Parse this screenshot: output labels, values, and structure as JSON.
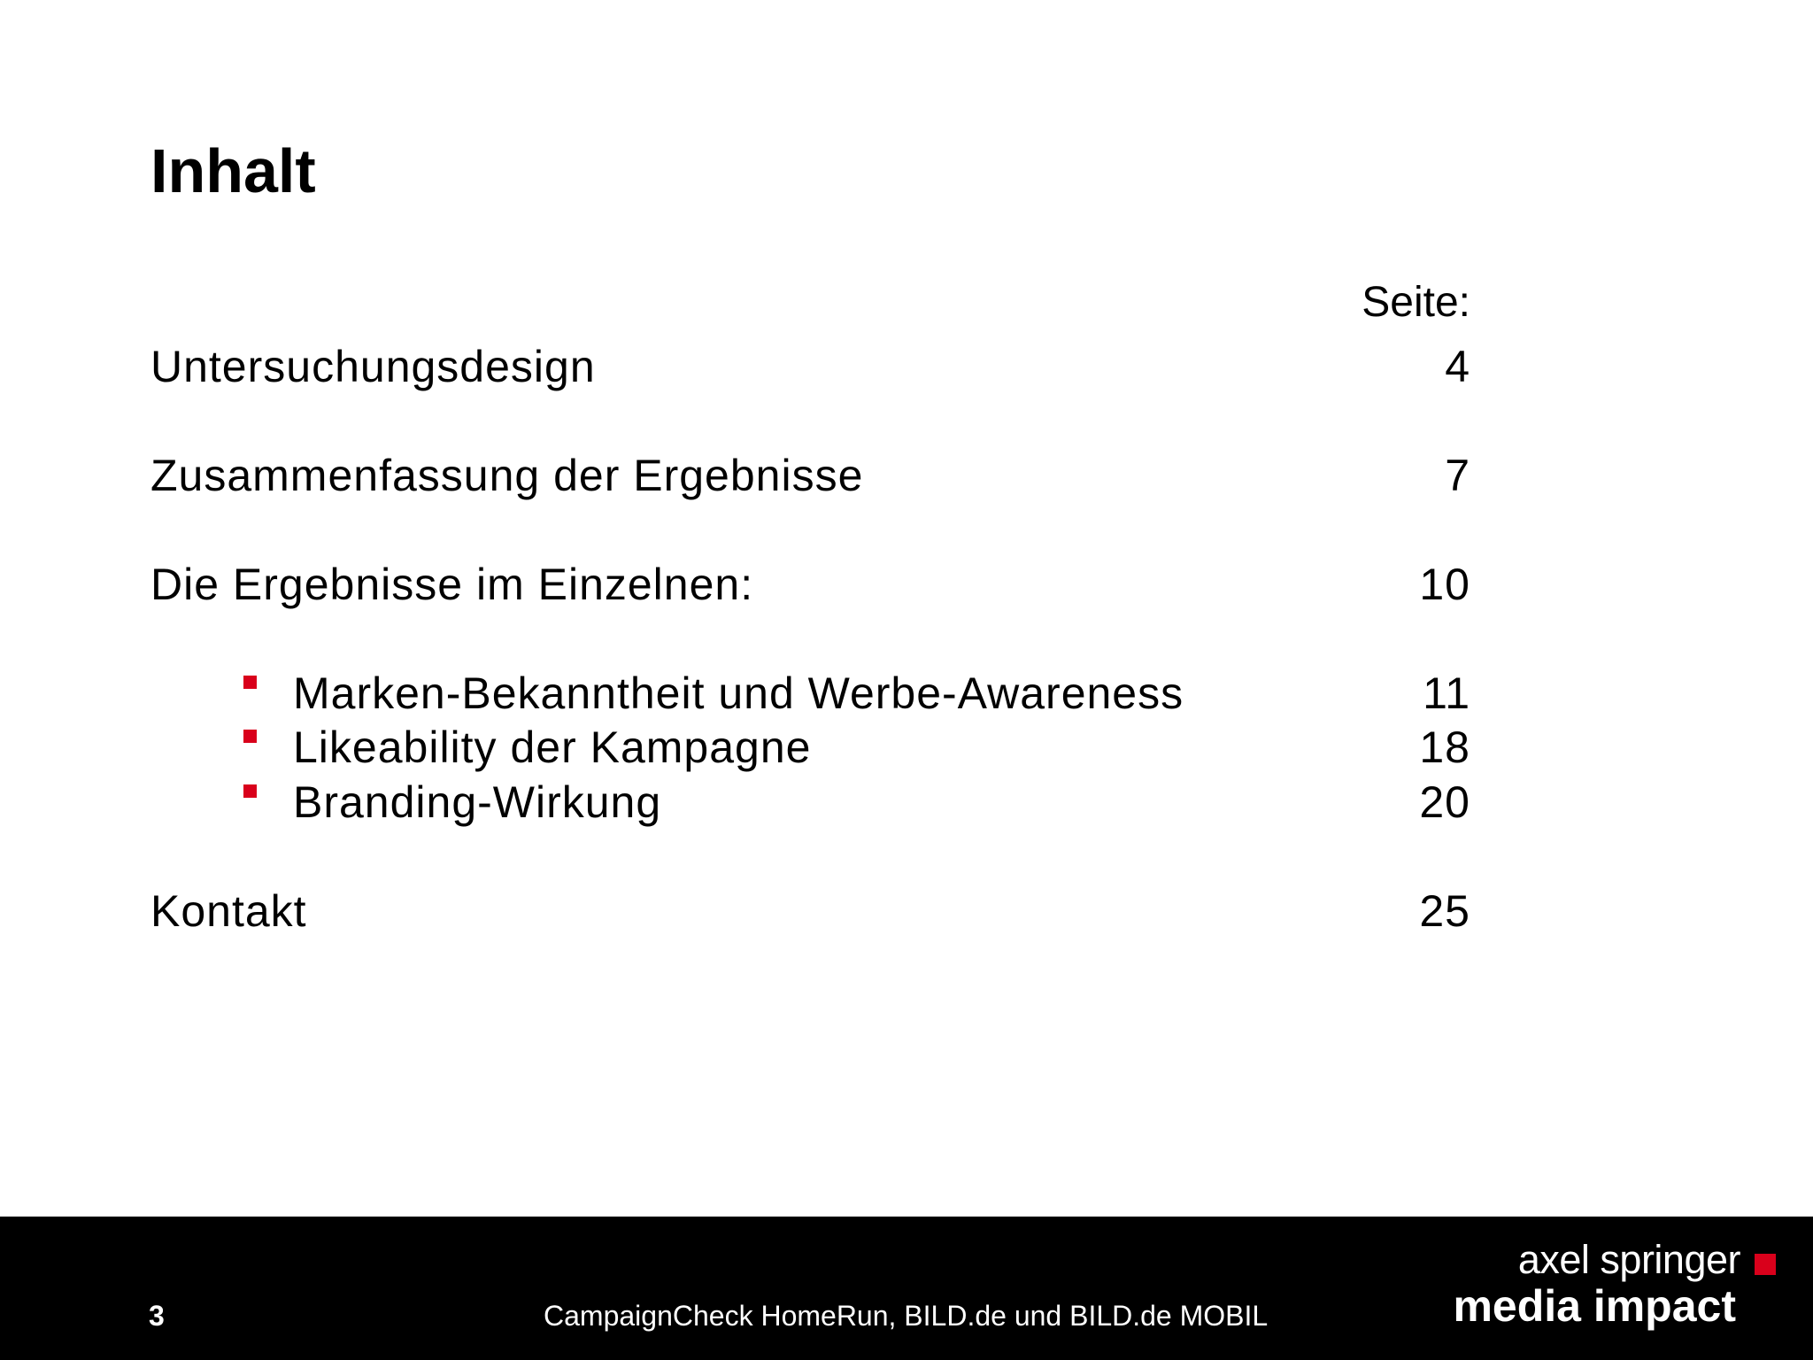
{
  "slide": {
    "title": "Inhalt",
    "page_column_label": "Seite:",
    "entries": [
      {
        "label": "Untersuchungsdesign",
        "page": "4"
      },
      {
        "label": "Zusammenfassung der Ergebnisse",
        "page": "7"
      },
      {
        "label": "Die Ergebnisse im Einzelnen:",
        "page": "10"
      },
      {
        "label": "Marken-Bekanntheit und Werbe-Awareness",
        "page": "11"
      },
      {
        "label": "Likeability der Kampagne",
        "page": "18"
      },
      {
        "label": "Branding-Wirkung",
        "page": "20"
      },
      {
        "label": "Kontakt",
        "page": "25"
      }
    ]
  },
  "footer": {
    "page_number": "3",
    "caption": "CampaignCheck HomeRun, BILD.de und BILD.de MOBIL",
    "logo": {
      "line1": "axel springer",
      "line2": "media impact"
    }
  },
  "colors": {
    "accent": "#d9001b",
    "footer_background": "#000000",
    "text": "#000000"
  }
}
